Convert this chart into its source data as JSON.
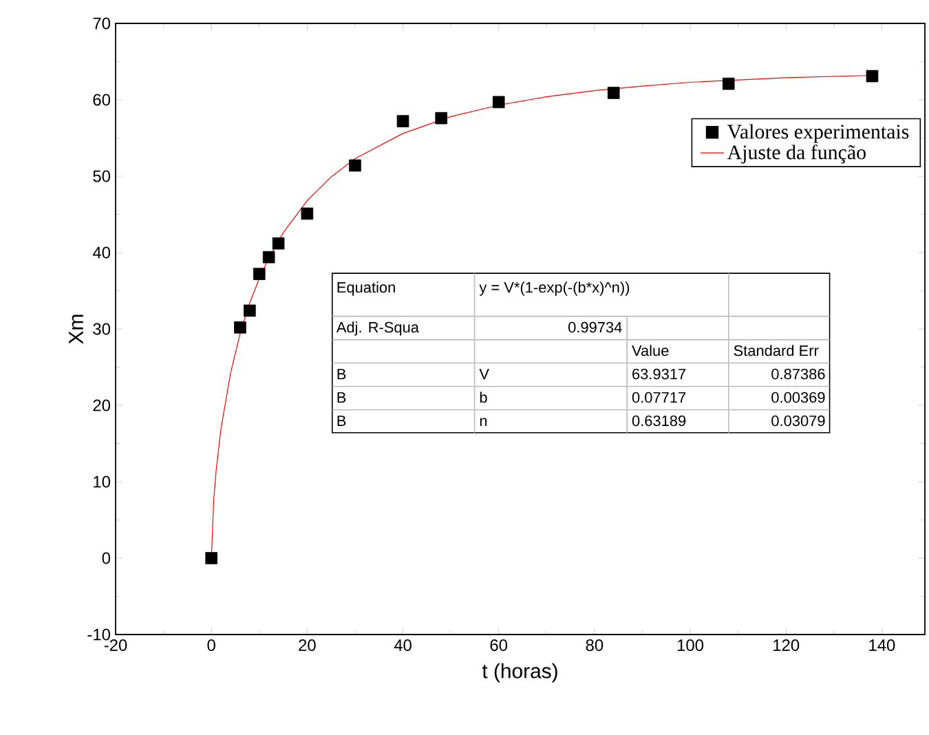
{
  "chart_data": {
    "type": "scatter",
    "xlabel": "t (horas)",
    "ylabel": "Xm",
    "xlim": [
      -20,
      149
    ],
    "ylim": [
      -10,
      70
    ],
    "xticks": [
      -20,
      0,
      20,
      40,
      60,
      80,
      100,
      120,
      140
    ],
    "yticks": [
      -10,
      0,
      10,
      20,
      30,
      40,
      50,
      60,
      70
    ],
    "legend": "top right",
    "grid": false,
    "series": [
      {
        "name": "Valores experimentais",
        "marker": "square",
        "color": "#000000",
        "x": [
          0,
          6,
          8,
          10,
          12,
          14,
          20,
          30,
          40,
          48,
          60,
          84,
          108,
          138
        ],
        "values": [
          0,
          30.2,
          32.4,
          37.2,
          39.4,
          41.2,
          45.1,
          51.4,
          57.2,
          57.6,
          59.7,
          60.9,
          62.1,
          63.1
        ]
      },
      {
        "name": "Ajuste da função",
        "type": "line",
        "marker": "none",
        "line_style": "solid",
        "color": "#ff0000",
        "x": [
          0,
          0.5,
          1,
          2,
          4,
          6,
          8,
          10,
          12,
          15,
          20,
          25,
          30,
          40,
          50,
          60,
          70,
          80,
          90,
          100,
          110,
          120,
          138
        ],
        "values": [
          0,
          7.7,
          11.5,
          16.9,
          24.2,
          29.4,
          33.4,
          36.6,
          39.3,
          42.6,
          46.8,
          49.9,
          52.3,
          55.6,
          57.8,
          59.3,
          60.4,
          61.2,
          61.8,
          62.3,
          62.6,
          62.9,
          63.2
        ]
      }
    ],
    "annotations": [
      "Equation",
      "y = V*(1-exp(-(b*x)^n))",
      "Adj. R-Squa",
      "0.99734",
      "Value",
      "Standard Err",
      "B",
      "V",
      "63.9317",
      "0.87386",
      "B",
      "b",
      "0.07717",
      "0.00369",
      "B",
      "n",
      "0.63189",
      "0.03079"
    ]
  }
}
